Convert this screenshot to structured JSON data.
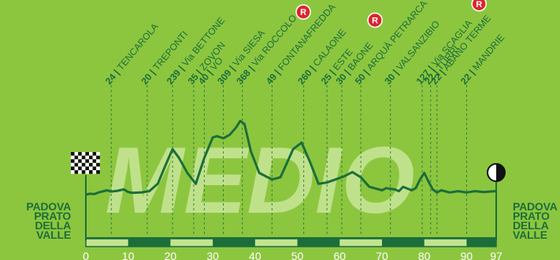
{
  "chart_data": {
    "type": "area",
    "title": "MEDIO",
    "x_ticks": [
      0,
      10,
      20,
      30,
      40,
      50,
      60,
      70,
      80,
      90,
      97
    ],
    "xlim": [
      0,
      97
    ],
    "start": {
      "line1": "PADOVA",
      "line2": "PRATO",
      "line3": "DELLA",
      "line4": "VALLE"
    },
    "finish": {
      "line1": "PADOVA",
      "line2": "PRATO",
      "line3": "DELLA",
      "line4": "VALLE"
    },
    "profile_km": [
      0,
      1,
      2,
      3,
      5,
      6,
      7.5,
      9,
      10,
      11,
      13,
      15,
      17,
      19,
      20.5,
      22,
      24,
      26,
      28,
      30,
      31,
      32.5,
      34,
      35.5,
      36.5,
      37.5,
      39,
      41,
      44,
      46,
      49,
      51,
      53,
      55,
      57,
      59,
      61,
      63,
      65,
      67,
      70,
      71,
      73,
      74,
      75,
      77,
      78,
      79,
      80,
      81,
      82,
      83,
      84,
      86,
      88,
      90,
      92,
      94,
      97
    ],
    "profile_elev": [
      20,
      22,
      21,
      25,
      30,
      27,
      29,
      32,
      26,
      24,
      25,
      28,
      45,
      92,
      125,
      105,
      70,
      45,
      105,
      152,
      155,
      150,
      158,
      175,
      190,
      183,
      120,
      70,
      55,
      60,
      125,
      140,
      95,
      45,
      48,
      55,
      62,
      72,
      60,
      38,
      30,
      35,
      32,
      28,
      38,
      30,
      35,
      55,
      70,
      50,
      32,
      25,
      30,
      25,
      28,
      25,
      28,
      26,
      28
    ],
    "waypoints": [
      {
        "km": 6,
        "elev": "24",
        "name": "TENCAROLA",
        "badge": ""
      },
      {
        "km": 14.5,
        "elev": "20",
        "name": "TREPONTI",
        "badge": ""
      },
      {
        "km": 20.5,
        "elev": "239",
        "name": "Via BETTONE",
        "badge": ""
      },
      {
        "km": 25.5,
        "elev": "35",
        "name": "ZOVON",
        "badge": ""
      },
      {
        "km": 28,
        "elev": "40",
        "name": "VÒ",
        "badge": ""
      },
      {
        "km": 32.5,
        "elev": "309",
        "name": "Via SIESA",
        "badge": "R"
      },
      {
        "km": 37,
        "elev": "368",
        "name": "Via ROCCOLO",
        "badge": ""
      },
      {
        "km": 44,
        "elev": "49",
        "name": "FONTANAFREDDA",
        "badge": ""
      },
      {
        "km": 51.5,
        "elev": "260",
        "name": "CALAONE",
        "badge": "R"
      },
      {
        "km": 57,
        "elev": "25",
        "name": "ESTE",
        "badge": ""
      },
      {
        "km": 60.5,
        "elev": "30",
        "name": "BAONE",
        "badge": ""
      },
      {
        "km": 65,
        "elev": "50",
        "name": "ARQUÀ PETRARCA",
        "badge": ""
      },
      {
        "km": 72,
        "elev": "30",
        "name": "VALSANZIBIO",
        "badge": "R"
      },
      {
        "km": 79.5,
        "elev": "127",
        "name": "Via SCAGLIA",
        "badge": ""
      },
      {
        "km": 81.5,
        "elev": "22",
        "name": "TURRI",
        "badge": ""
      },
      {
        "km": 83,
        "elev": "22",
        "name": "ABANO TERME",
        "badge": ""
      },
      {
        "km": 90,
        "elev": "22",
        "name": "MANDRIE",
        "badge": ""
      }
    ]
  }
}
